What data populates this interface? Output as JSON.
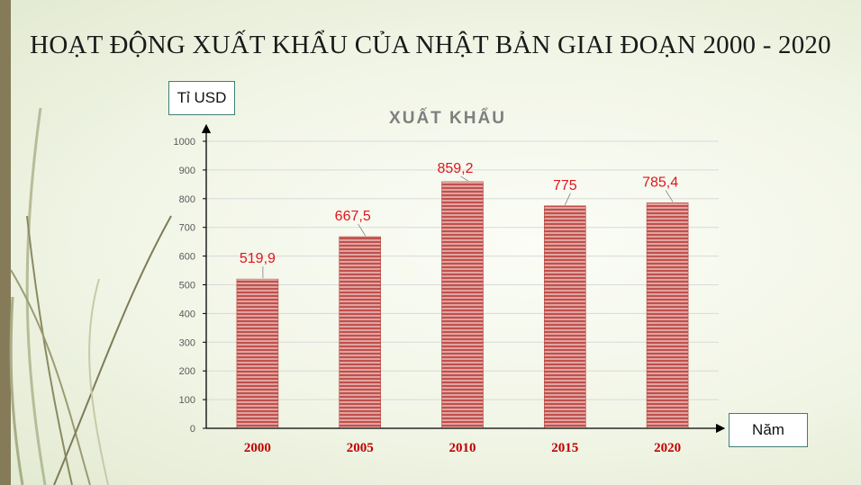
{
  "slide": {
    "title": "HOẠT ĐỘNG XUẤT KHẨU CỦA NHẬT BẢN GIAI ĐOẠN 2000 - 2020"
  },
  "chart_data": {
    "type": "bar",
    "title": "XUẤT KHẨU",
    "ylabel": "Tỉ USD",
    "xlabel": "Năm",
    "categories": [
      "2000",
      "2005",
      "2010",
      "2015",
      "2020"
    ],
    "values": [
      519.9,
      667.5,
      859.2,
      775,
      785.4
    ],
    "data_labels": [
      "519,9",
      "667,5",
      "859,2",
      "775",
      "785,4"
    ],
    "ylim": [
      0,
      1000
    ],
    "yticks": [
      0,
      100,
      200,
      300,
      400,
      500,
      600,
      700,
      800,
      900,
      1000
    ],
    "grid": true,
    "legend": "none",
    "colors": {
      "bar_fill": "#c0504d",
      "bar_stripe": "#f6dcd8",
      "label_text": "#e0161e",
      "category_text": "#c00000",
      "title_text": "#7f7f7f",
      "gridline": "#d9d9d9"
    }
  }
}
